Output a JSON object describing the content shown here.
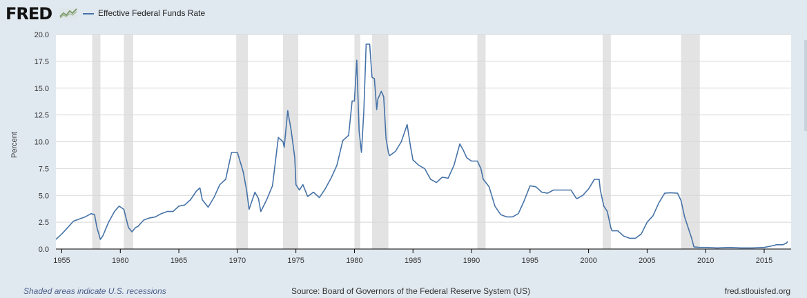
{
  "header": {
    "logo_text": "FRED",
    "logo_icon": "line-chart-icon",
    "legend_label": "Effective Federal Funds Rate"
  },
  "footer": {
    "recession_note": "Shaded areas indicate U.S. recessions",
    "source": "Source: Board of Governors of the Federal Reserve System (US)",
    "site": "fred.stlouisfed.org"
  },
  "colors": {
    "line": "#4572a7",
    "recession": "#e3e3e3",
    "plot_background": "#ffffff",
    "page_background": "#e1e9f0",
    "grid": "#d8d8d8"
  },
  "chart_data": {
    "type": "line",
    "title": "",
    "xlabel": "",
    "ylabel": "Percent",
    "xlim": [
      1954.5,
      2017.3
    ],
    "ylim": [
      0,
      20
    ],
    "y_ticks": [
      0.0,
      2.5,
      5.0,
      7.5,
      10.0,
      12.5,
      15.0,
      17.5,
      20.0
    ],
    "y_tick_labels": [
      "0.0",
      "2.5",
      "5.0",
      "7.5",
      "10.0",
      "12.5",
      "15.0",
      "17.5",
      "20.0"
    ],
    "x_ticks": [
      1955,
      1960,
      1965,
      1970,
      1975,
      1980,
      1985,
      1990,
      1995,
      2000,
      2005,
      2010,
      2015
    ],
    "x_tick_labels": [
      "1955",
      "1960",
      "1965",
      "1970",
      "1975",
      "1980",
      "1985",
      "1990",
      "1995",
      "2000",
      "2005",
      "2010",
      "2015"
    ],
    "grid": "horizontal",
    "legend": "top-left",
    "recessions": [
      [
        1957.6,
        1958.3
      ],
      [
        1960.3,
        1961.1
      ],
      [
        1969.9,
        1970.9
      ],
      [
        1973.9,
        1975.2
      ],
      [
        1980.0,
        1980.5
      ],
      [
        1981.5,
        1982.9
      ],
      [
        1990.5,
        1991.2
      ],
      [
        2001.2,
        2001.9
      ],
      [
        2007.9,
        2009.5
      ]
    ],
    "series": [
      {
        "name": "Effective Federal Funds Rate",
        "x": [
          1954.5,
          1954.8,
          1955.0,
          1955.5,
          1956.0,
          1956.5,
          1957.0,
          1957.5,
          1957.8,
          1958.0,
          1958.3,
          1958.5,
          1959.0,
          1959.5,
          1959.9,
          1960.3,
          1960.7,
          1961.0,
          1961.3,
          1961.5,
          1962.0,
          1962.5,
          1963.0,
          1963.5,
          1964.0,
          1964.5,
          1965.0,
          1965.5,
          1966.0,
          1966.5,
          1966.8,
          1967.0,
          1967.5,
          1968.0,
          1968.5,
          1969.0,
          1969.5,
          1970.0,
          1970.5,
          1970.8,
          1971.0,
          1971.5,
          1971.8,
          1972.0,
          1972.5,
          1973.0,
          1973.5,
          1973.9,
          1974.0,
          1974.3,
          1974.6,
          1974.9,
          1975.0,
          1975.3,
          1975.6,
          1976.0,
          1976.5,
          1977.0,
          1977.5,
          1978.0,
          1978.5,
          1979.0,
          1979.5,
          1979.8,
          1980.0,
          1980.2,
          1980.4,
          1980.6,
          1980.8,
          1981.0,
          1981.3,
          1981.5,
          1981.7,
          1981.9,
          1982.0,
          1982.3,
          1982.5,
          1982.7,
          1982.9,
          1983.0,
          1983.5,
          1984.0,
          1984.5,
          1984.8,
          1985.0,
          1985.5,
          1986.0,
          1986.5,
          1987.0,
          1987.5,
          1988.0,
          1988.5,
          1989.0,
          1989.3,
          1989.6,
          1990.0,
          1990.5,
          1990.8,
          1991.0,
          1991.5,
          1992.0,
          1992.5,
          1993.0,
          1993.5,
          1994.0,
          1994.5,
          1995.0,
          1995.5,
          1996.0,
          1996.5,
          1997.0,
          1997.5,
          1998.0,
          1998.5,
          1998.9,
          1999.0,
          1999.5,
          2000.0,
          2000.5,
          2000.9,
          2001.0,
          2001.3,
          2001.6,
          2001.9,
          2002.0,
          2002.5,
          2003.0,
          2003.5,
          2004.0,
          2004.5,
          2005.0,
          2005.5,
          2006.0,
          2006.5,
          2007.0,
          2007.6,
          2007.9,
          2008.2,
          2008.5,
          2008.8,
          2009.0,
          2009.5,
          2010.0,
          2011.0,
          2012.0,
          2013.0,
          2014.0,
          2015.0,
          2015.9,
          2016.0,
          2016.6,
          2016.9,
          2017.0
        ],
        "values": [
          0.9,
          1.2,
          1.4,
          2.0,
          2.6,
          2.8,
          3.0,
          3.3,
          3.2,
          2.0,
          0.9,
          1.2,
          2.5,
          3.5,
          4.0,
          3.7,
          2.0,
          1.6,
          2.0,
          2.1,
          2.7,
          2.9,
          3.0,
          3.3,
          3.5,
          3.5,
          4.0,
          4.1,
          4.6,
          5.4,
          5.7,
          4.6,
          3.9,
          4.8,
          6.0,
          6.5,
          9.0,
          9.0,
          7.2,
          5.4,
          3.7,
          5.3,
          4.7,
          3.5,
          4.6,
          5.9,
          10.4,
          10.0,
          9.5,
          12.9,
          11.0,
          8.5,
          6.0,
          5.5,
          6.0,
          4.9,
          5.3,
          4.8,
          5.6,
          6.6,
          7.8,
          10.1,
          10.6,
          13.8,
          13.8,
          17.6,
          11.0,
          9.0,
          12.8,
          19.1,
          19.1,
          16.0,
          15.9,
          13.0,
          14.0,
          14.7,
          14.2,
          10.3,
          9.0,
          8.7,
          9.1,
          10.0,
          11.6,
          9.5,
          8.3,
          7.8,
          7.5,
          6.5,
          6.2,
          6.7,
          6.6,
          7.8,
          9.8,
          9.2,
          8.5,
          8.2,
          8.2,
          7.5,
          6.5,
          5.8,
          4.0,
          3.2,
          3.0,
          3.0,
          3.3,
          4.5,
          5.9,
          5.8,
          5.3,
          5.2,
          5.5,
          5.5,
          5.5,
          5.5,
          4.8,
          4.7,
          5.0,
          5.6,
          6.5,
          6.5,
          5.5,
          4.0,
          3.5,
          2.0,
          1.7,
          1.7,
          1.2,
          1.0,
          1.0,
          1.4,
          2.5,
          3.1,
          4.3,
          5.2,
          5.25,
          5.2,
          4.5,
          3.0,
          2.0,
          1.0,
          0.2,
          0.15,
          0.15,
          0.1,
          0.15,
          0.1,
          0.1,
          0.15,
          0.35,
          0.4,
          0.4,
          0.55,
          0.7
        ]
      }
    ]
  }
}
